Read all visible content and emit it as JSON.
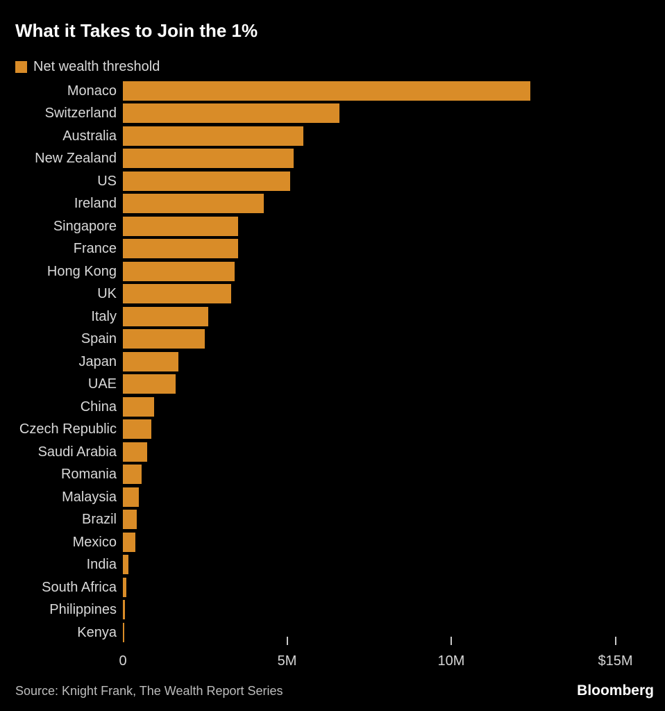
{
  "title": "What it Takes to Join the 1%",
  "legend": {
    "label": "Net wealth threshold"
  },
  "source": "Source: Knight Frank, The Wealth Report Series",
  "brand": "Bloomberg",
  "colors": {
    "background": "#000000",
    "bar": "#D98C28",
    "label_text": "#D9D9D9",
    "title_text": "#FFFFFF",
    "axis_text": "#D6D6D6",
    "tick_mark": "#C9C9C9",
    "source_text": "#BDBDBD",
    "brand_text": "#FFFFFF"
  },
  "chart_data": {
    "type": "bar",
    "orientation": "horizontal",
    "title": "What it Takes to Join the 1%",
    "series_name": "Net wealth threshold",
    "unit": "USD, millions",
    "grid": false,
    "legend_position": "top-left",
    "xlim": [
      0,
      16.5
    ],
    "categories": [
      "Monaco",
      "Switzerland",
      "Australia",
      "New Zealand",
      "US",
      "Ireland",
      "Singapore",
      "France",
      "Hong Kong",
      "UK",
      "Italy",
      "Spain",
      "Japan",
      "UAE",
      "China",
      "Czech Republic",
      "Saudi Arabia",
      "Romania",
      "Malaysia",
      "Brazil",
      "Mexico",
      "India",
      "South Africa",
      "Philippines",
      "Kenya"
    ],
    "values": [
      12.4,
      6.6,
      5.5,
      5.2,
      5.1,
      4.3,
      3.5,
      3.5,
      3.4,
      3.3,
      2.6,
      2.5,
      1.7,
      1.6,
      0.96,
      0.86,
      0.74,
      0.57,
      0.485,
      0.43,
      0.38,
      0.175,
      0.109,
      0.057,
      0.02
    ],
    "x_ticks": [
      {
        "label": "0",
        "value": 0,
        "mark": false
      },
      {
        "label": "5M",
        "value": 5,
        "mark": true
      },
      {
        "label": "10M",
        "value": 10,
        "mark": true
      },
      {
        "label": "$15M",
        "value": 15,
        "mark": true
      }
    ]
  }
}
